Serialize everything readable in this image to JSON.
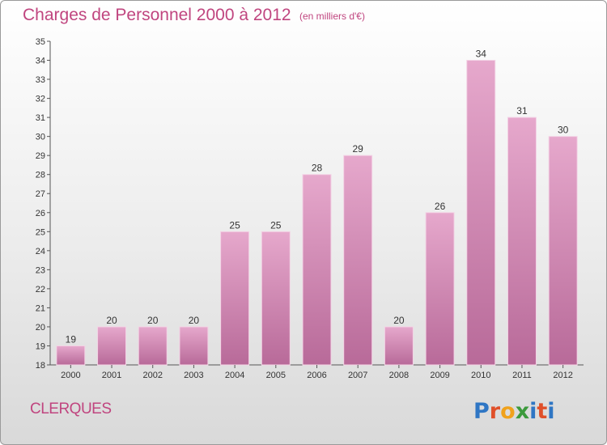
{
  "title": "Charges de Personnel 2000 à 2012",
  "unit_note": "(en milliers d'€)",
  "town": "CLERQUES",
  "logo": {
    "text": "Proxiti",
    "colors": [
      "#2f76c4",
      "#e0502a",
      "#f0a21c",
      "#3c9a3c",
      "#2f76c4",
      "#e0502a",
      "#2f76c4"
    ]
  },
  "colors": {
    "bar": "#d27aae",
    "bar_light": "#e6a8cc",
    "text_accent": "#c0457f"
  },
  "chart_data": {
    "type": "bar",
    "categories": [
      "2000",
      "2001",
      "2002",
      "2003",
      "2004",
      "2005",
      "2006",
      "2007",
      "2008",
      "2009",
      "2010",
      "2011",
      "2012"
    ],
    "values": [
      19,
      20,
      20,
      20,
      25,
      25,
      28,
      29,
      20,
      26,
      34,
      31,
      30
    ],
    "value_labels": [
      "19",
      "20",
      "20",
      "20",
      "25",
      "25",
      "28",
      "29",
      "20",
      "26",
      "34",
      "31",
      "30"
    ],
    "yticks": [
      "18",
      "19",
      "20",
      "21",
      "22",
      "23",
      "24",
      "25",
      "26",
      "27",
      "28",
      "29",
      "30",
      "31",
      "32",
      "33",
      "34",
      "35"
    ],
    "ylim": [
      18,
      35
    ],
    "grid": false,
    "title": "Charges de Personnel 2000 à 2012",
    "xlabel": "",
    "ylabel": ""
  }
}
